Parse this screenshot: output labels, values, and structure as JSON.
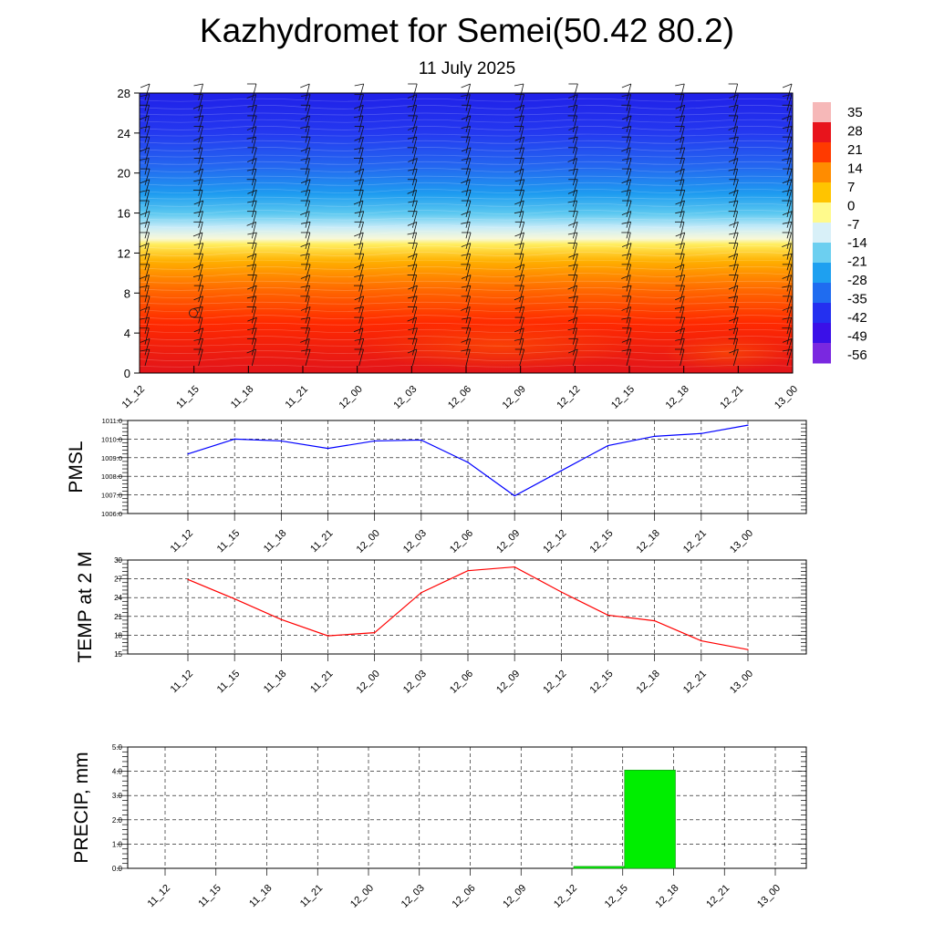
{
  "title": "Kazhydromet for Semei(50.42 80.2)",
  "subtitle": "11 July 2025",
  "chart_data": [
    {
      "type": "heatmap",
      "name": "temperature-profile",
      "x": [
        "11_12",
        "11_15",
        "11_18",
        "11_21",
        "12_00",
        "12_03",
        "12_06",
        "12_09",
        "12_12",
        "12_15",
        "12_18",
        "12_21",
        "13_00"
      ],
      "y_ticks": [
        0,
        4,
        8,
        12,
        16,
        20,
        24,
        28
      ],
      "ylim": [
        0,
        28
      ],
      "colorbar": {
        "labels": [
          "35",
          "28",
          "21",
          "14",
          "7",
          "0",
          "-7",
          "-14",
          "-21",
          "-28",
          "-35",
          "-42",
          "-49",
          "-56"
        ],
        "colors": [
          "#f6b8b8",
          "#e8141c",
          "#ff3a00",
          "#ff8c00",
          "#ffc400",
          "#fffa8c",
          "#d8f0f8",
          "#6ccff0",
          "#1ea0f0",
          "#1f6cf0",
          "#2430f0",
          "#3a10e8",
          "#7a28e0"
        ]
      }
    },
    {
      "type": "line",
      "name": "pmsl",
      "ylabel": "PMSL",
      "x": [
        "11_12",
        "11_15",
        "11_18",
        "11_21",
        "12_00",
        "12_03",
        "12_06",
        "12_09",
        "12_12",
        "12_15",
        "12_18",
        "12_21",
        "13_00"
      ],
      "y_ticks": [
        "1006.0",
        "1007.0",
        "1008.0",
        "1009.0",
        "1010.0",
        "1011.0"
      ],
      "ylim": [
        1006,
        1011
      ],
      "values": [
        1009.2,
        1010.0,
        1009.9,
        1009.5,
        1009.9,
        1009.95,
        1008.75,
        1006.95,
        1008.3,
        1009.65,
        1010.15,
        1010.3,
        1010.75
      ],
      "color": "#0000ff",
      "grid": true
    },
    {
      "type": "line",
      "name": "temp-2m",
      "ylabel": "TEMP at 2 M",
      "x": [
        "11_12",
        "11_15",
        "11_18",
        "11_21",
        "12_00",
        "12_03",
        "12_06",
        "12_09",
        "12_12",
        "12_15",
        "12_18",
        "12_21",
        "13_00"
      ],
      "y_ticks": [
        "15",
        "18",
        "21",
        "24",
        "27",
        "30"
      ],
      "ylim": [
        15,
        30
      ],
      "values": [
        26.9,
        23.8,
        20.5,
        17.9,
        18.4,
        24.8,
        28.3,
        28.9,
        24.9,
        21.2,
        20.3,
        17.1,
        15.7
      ],
      "color": "#ff0000",
      "grid": true
    },
    {
      "type": "bar",
      "name": "precip",
      "ylabel": "PRECIP, mm",
      "x": [
        "11_12",
        "11_15",
        "11_18",
        "11_21",
        "12_00",
        "12_03",
        "12_06",
        "12_09",
        "12_12",
        "12_15",
        "12_18",
        "12_21",
        "13_00"
      ],
      "y_ticks": [
        "0.0",
        "1.0",
        "2.0",
        "3.0",
        "4.0",
        "5.0"
      ],
      "ylim": [
        0,
        5
      ],
      "values": [
        0,
        0,
        0,
        0,
        0,
        0,
        0,
        0,
        0.08,
        4.05,
        0,
        0,
        0
      ],
      "color": "#00ee00",
      "grid": true
    }
  ]
}
